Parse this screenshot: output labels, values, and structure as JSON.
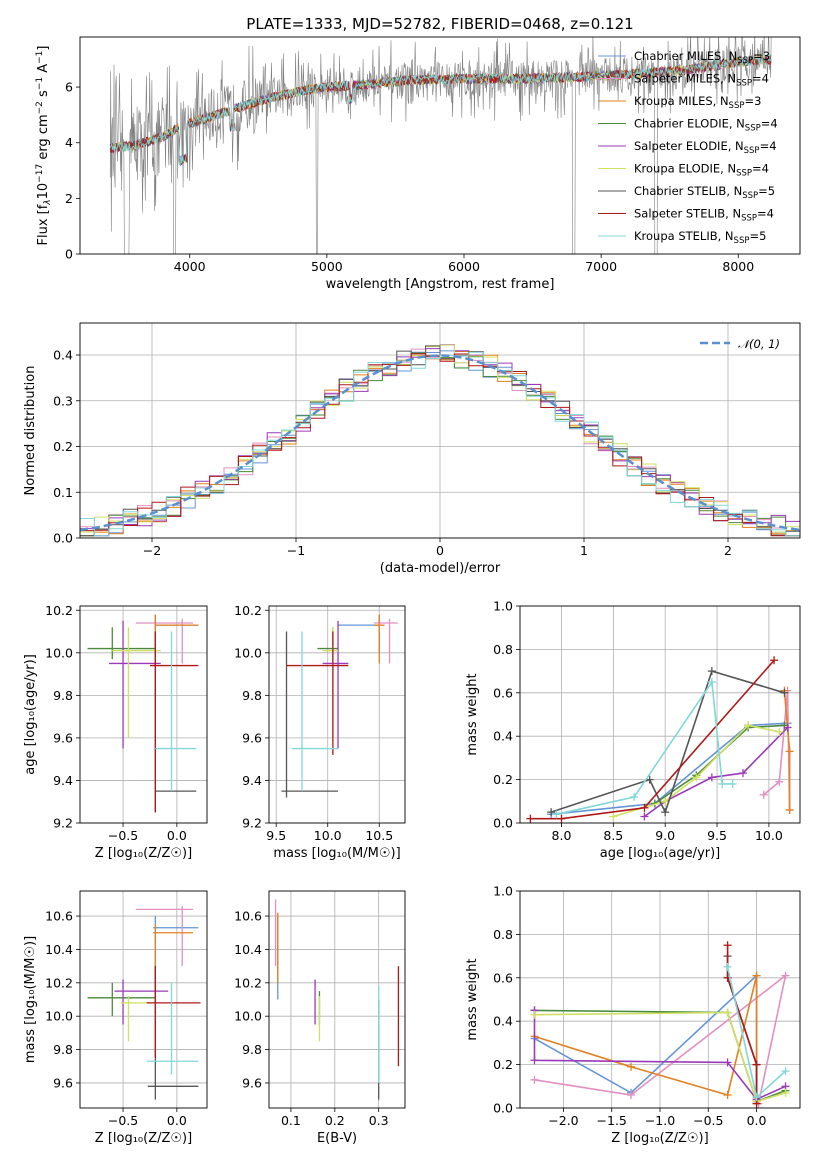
{
  "colors": {
    "chabrier_miles": "#6495d8",
    "salpeter_miles": "#e38fc0",
    "kroupa_miles": "#e3801f",
    "chabrier_elodie": "#4a8a3a",
    "salpeter_elodie": "#9a3ab8",
    "kroupa_elodie": "#d0e060",
    "chabrier_stelib": "#555555",
    "salpeter_stelib": "#b01818",
    "kroupa_stelib": "#80d8d8",
    "data_grey": "#808080",
    "normal_dash": "#5a8fd0"
  },
  "chart_data": [
    {
      "id": "spectrum",
      "type": "line",
      "title": "PLATE=1333, MJD=52782, FIBERID=0468, z=0.121",
      "xlabel": "wavelength [Angstrom, rest frame]",
      "ylabel_parts": [
        "Flux [f",
        "λ",
        "10",
        "−17",
        " erg cm",
        "−2",
        " s",
        "−1",
        " A",
        "−1",
        "]"
      ],
      "xlim": [
        3200,
        8450
      ],
      "ylim": [
        0,
        7.8
      ],
      "xticks": [
        "4000",
        "5000",
        "6000",
        "7000",
        "8000"
      ],
      "yticks": [
        "0",
        "2",
        "4",
        "6"
      ],
      "legend_position": "upper right",
      "legend": [
        {
          "name": "Chabrier MILES, N",
          "sub": "SSP",
          "suffix": "=3",
          "color_key": "chabrier_miles"
        },
        {
          "name": "Salpeter MILES, N",
          "sub": "SSP",
          "suffix": "=4",
          "color_key": "salpeter_miles"
        },
        {
          "name": "Kroupa MILES, N",
          "sub": "SSP",
          "suffix": "=3",
          "color_key": "kroupa_miles"
        },
        {
          "name": "Chabrier ELODIE, N",
          "sub": "SSP",
          "suffix": "=4",
          "color_key": "chabrier_elodie"
        },
        {
          "name": "Salpeter ELODIE, N",
          "sub": "SSP",
          "suffix": "=4",
          "color_key": "salpeter_elodie"
        },
        {
          "name": "Kroupa ELODIE, N",
          "sub": "SSP",
          "suffix": "=4",
          "color_key": "kroupa_elodie"
        },
        {
          "name": "Chabrier STELIB, N",
          "sub": "SSP",
          "suffix": "=5",
          "color_key": "chabrier_stelib"
        },
        {
          "name": "Salpeter STELIB, N",
          "sub": "SSP",
          "suffix": "=4",
          "color_key": "salpeter_stelib"
        },
        {
          "name": "Kroupa STELIB, N",
          "sub": "SSP",
          "suffix": "=5",
          "color_key": "kroupa_stelib"
        }
      ],
      "continuum": {
        "x": [
          3400,
          3600,
          3800,
          3900,
          4000,
          4200,
          4500,
          4800,
          5000,
          5300,
          5600,
          6000,
          6400,
          6800,
          7200,
          7600,
          8000,
          8200
        ],
        "y": [
          3.8,
          3.9,
          4.2,
          4.5,
          4.7,
          5.0,
          5.5,
          5.85,
          6.0,
          6.1,
          6.25,
          6.3,
          6.3,
          6.35,
          6.45,
          6.6,
          6.9,
          7.0
        ]
      }
    },
    {
      "id": "residuals",
      "type": "line",
      "xlabel": "(data-model)/error",
      "ylabel": "Normed distribution",
      "xlim": [
        -2.5,
        2.5
      ],
      "ylim": [
        0,
        0.47
      ],
      "xticks": [
        -2,
        -1,
        0,
        1,
        2
      ],
      "xtick_labels": [
        "−2",
        "−1",
        "0",
        "1",
        "2"
      ],
      "yticks": [
        0.0,
        0.1,
        0.2,
        0.3,
        0.4
      ],
      "ytick_labels": [
        "0.0",
        "0.1",
        "0.2",
        "0.3",
        "0.4"
      ],
      "grid": true,
      "legend_position": "upper right",
      "legend": "𝒩(0, 1)"
    },
    {
      "id": "age-vs-Z",
      "type": "scatter",
      "xlabel": "Z [log₁₀(Z/Z☉)]",
      "ylabel": "age  [log₁₀(age/yr)]",
      "xlim": [
        -0.9,
        0.28
      ],
      "ylim": [
        9.2,
        10.22
      ],
      "xticks": [
        -0.5,
        0.0
      ],
      "xtick_labels": [
        "−0.5",
        "0.0"
      ],
      "yticks": [
        9.2,
        9.4,
        9.6,
        9.8,
        10.0,
        10.2
      ],
      "ytick_labels": [
        "9.2",
        "9.4",
        "9.6",
        "9.8",
        "10.0",
        "10.2"
      ],
      "grid": true,
      "points": [
        {
          "c": "chabrier_miles",
          "x": -0.2,
          "y": 10.13,
          "x0": -0.2,
          "x1": 0.2,
          "y0": 10.0,
          "y1": 10.18
        },
        {
          "c": "salpeter_miles",
          "x": 0.05,
          "y": 10.14,
          "x0": -0.38,
          "x1": 0.15,
          "y0": 9.95,
          "y1": 10.16
        },
        {
          "c": "kroupa_miles",
          "x": -0.2,
          "y": 10.13,
          "x0": -0.2,
          "x1": 0.2,
          "y0": 9.95,
          "y1": 10.18
        },
        {
          "c": "chabrier_elodie",
          "x": -0.6,
          "y": 10.02,
          "x0": -0.83,
          "x1": -0.2,
          "y0": 9.97,
          "y1": 10.12
        },
        {
          "c": "salpeter_elodie",
          "x": -0.5,
          "y": 9.95,
          "x0": -0.63,
          "x1": -0.15,
          "y0": 9.55,
          "y1": 10.15
        },
        {
          "c": "kroupa_elodie",
          "x": -0.45,
          "y": 10.01,
          "x0": -0.6,
          "x1": -0.15,
          "y0": 9.6,
          "y1": 10.12
        },
        {
          "c": "chabrier_stelib",
          "x": -0.2,
          "y": 9.35,
          "x0": -0.2,
          "x1": 0.18,
          "y0": 9.25,
          "y1": 10.1
        },
        {
          "c": "salpeter_stelib",
          "x": -0.2,
          "y": 9.94,
          "x0": -0.25,
          "x1": 0.2,
          "y0": 9.25,
          "y1": 10.1
        },
        {
          "c": "kroupa_stelib",
          "x": -0.05,
          "y": 9.55,
          "x0": -0.2,
          "x1": 0.18,
          "y0": 9.35,
          "y1": 10.1
        }
      ]
    },
    {
      "id": "age-vs-mass",
      "type": "scatter",
      "xlabel": "mass [log₁₀(M/M☉)]",
      "xlim": [
        9.43,
        10.75
      ],
      "ylim": [
        9.2,
        10.22
      ],
      "xticks": [
        9.5,
        10.0,
        10.5
      ],
      "xtick_labels": [
        "9.5",
        "10.0",
        "10.5"
      ],
      "yticks": [
        9.2,
        9.4,
        9.6,
        9.8,
        10.0,
        10.2
      ],
      "ytick_labels": [
        "9.2",
        "9.4",
        "9.6",
        "9.8",
        "10.0",
        "10.2"
      ],
      "grid": true,
      "points": [
        {
          "c": "chabrier_miles",
          "x": 10.5,
          "y": 10.13,
          "x0": 10.1,
          "x1": 10.55,
          "y0": 10.0,
          "y1": 10.18
        },
        {
          "c": "salpeter_miles",
          "x": 10.6,
          "y": 10.14,
          "x0": 10.45,
          "x1": 10.68,
          "y0": 9.95,
          "y1": 10.16
        },
        {
          "c": "kroupa_miles",
          "x": 10.5,
          "y": 10.13,
          "x0": 10.45,
          "x1": 10.55,
          "y0": 9.95,
          "y1": 10.18
        },
        {
          "c": "chabrier_elodie",
          "x": 10.05,
          "y": 10.02,
          "x0": 9.9,
          "x1": 10.1,
          "y0": 9.97,
          "y1": 10.12
        },
        {
          "c": "salpeter_elodie",
          "x": 10.1,
          "y": 9.95,
          "x0": 9.95,
          "x1": 10.2,
          "y0": 9.55,
          "y1": 10.15
        },
        {
          "c": "kroupa_elodie",
          "x": 10.05,
          "y": 10.01,
          "x0": 9.95,
          "x1": 10.1,
          "y0": 9.6,
          "y1": 10.12
        },
        {
          "c": "chabrier_stelib",
          "x": 9.6,
          "y": 9.35,
          "x0": 9.55,
          "x1": 10.1,
          "y0": 9.32,
          "y1": 10.1
        },
        {
          "c": "salpeter_stelib",
          "x": 10.05,
          "y": 9.94,
          "x0": 9.6,
          "x1": 10.2,
          "y0": 9.52,
          "y1": 10.1
        },
        {
          "c": "kroupa_stelib",
          "x": 9.75,
          "y": 9.55,
          "x0": 9.65,
          "x1": 10.1,
          "y0": 9.35,
          "y1": 10.1
        }
      ]
    },
    {
      "id": "massweight-vs-age",
      "type": "line",
      "xlabel": "age  [log₁₀(age/yr)]",
      "ylabel": "mass weight",
      "xlim": [
        7.6,
        10.3
      ],
      "ylim": [
        0,
        1.0
      ],
      "xticks": [
        8.0,
        8.5,
        9.0,
        9.5,
        10.0
      ],
      "xtick_labels": [
        "8.0",
        "8.5",
        "9.0",
        "9.5",
        "10.0"
      ],
      "yticks": [
        0.0,
        0.2,
        0.4,
        0.6,
        0.8,
        1.0
      ],
      "ytick_labels": [
        "0.0",
        "0.2",
        "0.4",
        "0.6",
        "0.8",
        "1.0"
      ],
      "grid": true,
      "series": [
        {
          "c": "chabrier_miles",
          "x": [
            7.9,
            8.9,
            9.8,
            10.18
          ],
          "y": [
            0.04,
            0.09,
            0.45,
            0.46
          ]
        },
        {
          "c": "salpeter_miles",
          "x": [
            9.95,
            10.1,
            10.18,
            10.2
          ],
          "y": [
            0.13,
            0.19,
            0.61,
            0.06
          ]
        },
        {
          "c": "kroupa_miles",
          "x": [
            10.15,
            10.2,
            10.2
          ],
          "y": [
            0.61,
            0.33,
            0.06
          ]
        },
        {
          "c": "chabrier_elodie",
          "x": [
            8.9,
            9.3,
            9.8,
            10.15
          ],
          "y": [
            0.09,
            0.22,
            0.44,
            0.45
          ]
        },
        {
          "c": "salpeter_elodie",
          "x": [
            8.8,
            9.0,
            9.45,
            9.75,
            10.18
          ],
          "y": [
            0.03,
            0.1,
            0.21,
            0.23,
            0.44
          ]
        },
        {
          "c": "kroupa_elodie",
          "x": [
            8.5,
            9.0,
            9.3,
            9.8,
            10.1
          ],
          "y": [
            0.03,
            0.1,
            0.21,
            0.45,
            0.42
          ]
        },
        {
          "c": "chabrier_stelib",
          "x": [
            7.9,
            8.85,
            9.0,
            9.45,
            10.15
          ],
          "y": [
            0.05,
            0.2,
            0.05,
            0.7,
            0.6
          ]
        },
        {
          "c": "salpeter_stelib",
          "x": [
            7.7,
            8.0,
            8.8,
            10.05
          ],
          "y": [
            0.02,
            0.02,
            0.07,
            0.75
          ]
        },
        {
          "c": "kroupa_stelib",
          "x": [
            7.95,
            8.7,
            9.45,
            9.55,
            9.65
          ],
          "y": [
            0.04,
            0.12,
            0.65,
            0.18,
            0.18
          ]
        }
      ]
    },
    {
      "id": "mass-vs-Z",
      "type": "scatter",
      "xlabel": "Z [log₁₀(Z/Z☉)]",
      "ylabel": "mass [log₁₀(M/M☉)]",
      "xlim": [
        -0.9,
        0.28
      ],
      "ylim": [
        9.45,
        10.75
      ],
      "xticks": [
        -0.5,
        0.0
      ],
      "xtick_labels": [
        "−0.5",
        "0.0"
      ],
      "yticks": [
        9.6,
        9.8,
        10.0,
        10.2,
        10.4,
        10.6
      ],
      "ytick_labels": [
        "9.6",
        "9.8",
        "10.0",
        "10.2",
        "10.4",
        "10.6"
      ],
      "grid": true,
      "points": [
        {
          "c": "chabrier_miles",
          "x": -0.2,
          "y": 10.53,
          "x0": -0.22,
          "x1": 0.2,
          "y0": 10.1,
          "y1": 10.6
        },
        {
          "c": "salpeter_miles",
          "x": 0.05,
          "y": 10.64,
          "x0": -0.38,
          "x1": 0.15,
          "y0": 10.3,
          "y1": 10.66
        },
        {
          "c": "kroupa_miles",
          "x": -0.2,
          "y": 10.5,
          "x0": -0.22,
          "x1": 0.15,
          "y0": 10.2,
          "y1": 10.55
        },
        {
          "c": "chabrier_elodie",
          "x": -0.6,
          "y": 10.11,
          "x0": -0.83,
          "x1": -0.2,
          "y0": 10.0,
          "y1": 10.2
        },
        {
          "c": "salpeter_elodie",
          "x": -0.5,
          "y": 10.15,
          "x0": -0.58,
          "x1": -0.08,
          "y0": 9.95,
          "y1": 10.22
        },
        {
          "c": "kroupa_elodie",
          "x": -0.45,
          "y": 10.08,
          "x0": -0.52,
          "x1": -0.2,
          "y0": 9.85,
          "y1": 10.12
        },
        {
          "c": "chabrier_stelib",
          "x": -0.2,
          "y": 9.58,
          "x0": -0.27,
          "x1": 0.2,
          "y0": 9.5,
          "y1": 10.3
        },
        {
          "c": "salpeter_stelib",
          "x": -0.2,
          "y": 10.08,
          "x0": -0.28,
          "x1": 0.22,
          "y0": 9.75,
          "y1": 10.3
        },
        {
          "c": "kroupa_stelib",
          "x": -0.05,
          "y": 9.73,
          "x0": -0.28,
          "x1": 0.2,
          "y0": 9.65,
          "y1": 10.2
        }
      ]
    },
    {
      "id": "mass-vs-EBV",
      "type": "scatter",
      "xlabel": "E(B-V)",
      "xlim": [
        0.05,
        0.36
      ],
      "ylim": [
        9.45,
        10.75
      ],
      "xticks": [
        0.1,
        0.2,
        0.3
      ],
      "xtick_labels": [
        "0.1",
        "0.2",
        "0.3"
      ],
      "yticks": [
        9.6,
        9.8,
        10.0,
        10.2,
        10.4,
        10.6
      ],
      "ytick_labels": [
        "9.6",
        "9.8",
        "10.0",
        "10.2",
        "10.4",
        "10.6"
      ],
      "grid": true,
      "points": [
        {
          "c": "chabrier_miles",
          "x": 0.07,
          "y": 10.4,
          "x0": 0.07,
          "x1": 0.07,
          "y0": 10.1,
          "y1": 10.6
        },
        {
          "c": "salpeter_miles",
          "x": 0.065,
          "y": 10.5,
          "x0": 0.065,
          "x1": 0.065,
          "y0": 10.3,
          "y1": 10.7
        },
        {
          "c": "kroupa_miles",
          "x": 0.07,
          "y": 10.4,
          "x0": 0.07,
          "x1": 0.07,
          "y0": 10.2,
          "y1": 10.62
        },
        {
          "c": "chabrier_elodie",
          "x": 0.165,
          "y": 10.1,
          "x0": 0.165,
          "x1": 0.165,
          "y0": 9.95,
          "y1": 10.15
        },
        {
          "c": "salpeter_elodie",
          "x": 0.155,
          "y": 10.1,
          "x0": 0.155,
          "x1": 0.155,
          "y0": 9.95,
          "y1": 10.22
        },
        {
          "c": "kroupa_elodie",
          "x": 0.165,
          "y": 10.0,
          "x0": 0.165,
          "x1": 0.165,
          "y0": 9.85,
          "y1": 10.12
        },
        {
          "c": "chabrier_stelib",
          "x": 0.3,
          "y": 9.7,
          "x0": 0.3,
          "x1": 0.3,
          "y0": 9.5,
          "y1": 10.1
        },
        {
          "c": "salpeter_stelib",
          "x": 0.345,
          "y": 10.0,
          "x0": 0.345,
          "x1": 0.345,
          "y0": 9.7,
          "y1": 10.3
        },
        {
          "c": "kroupa_stelib",
          "x": 0.3,
          "y": 9.8,
          "x0": 0.3,
          "x1": 0.3,
          "y0": 9.6,
          "y1": 10.18
        }
      ]
    },
    {
      "id": "massweight-vs-Z",
      "type": "line",
      "xlabel": "Z [log₁₀(Z/Z☉)]",
      "ylabel": "mass weight",
      "xlim": [
        -2.45,
        0.45
      ],
      "ylim": [
        0,
        1.0
      ],
      "xticks": [
        -2.0,
        -1.5,
        -1.0,
        -0.5,
        0.0
      ],
      "xtick_labels": [
        "−2.0",
        "−1.5",
        "−1.0",
        "−0.5",
        "0.0"
      ],
      "yticks": [
        0.0,
        0.2,
        0.4,
        0.6,
        0.8,
        1.0
      ],
      "ytick_labels": [
        "0.0",
        "0.2",
        "0.4",
        "0.6",
        "0.8",
        "1.0"
      ],
      "grid": true,
      "series": [
        {
          "c": "chabrier_miles",
          "x": [
            -2.3,
            -1.3,
            0.0,
            0.0
          ],
          "y": [
            0.32,
            0.07,
            0.61,
            0.03
          ]
        },
        {
          "c": "salpeter_miles",
          "x": [
            -2.3,
            -1.3,
            0.3,
            0.02
          ],
          "y": [
            0.13,
            0.06,
            0.61,
            0.02
          ]
        },
        {
          "c": "kroupa_miles",
          "x": [
            -2.3,
            -1.3,
            -0.3,
            0.0,
            0.0
          ],
          "y": [
            0.33,
            0.19,
            0.06,
            0.61,
            0.03
          ]
        },
        {
          "c": "chabrier_elodie",
          "x": [
            -2.3,
            -0.3,
            0.0,
            0.3
          ],
          "y": [
            0.45,
            0.44,
            0.03,
            0.08
          ]
        },
        {
          "c": "salpeter_elodie",
          "x": [
            -2.3,
            -2.3,
            -0.3,
            0.0,
            0.3
          ],
          "y": [
            0.45,
            0.22,
            0.21,
            0.04,
            0.1
          ]
        },
        {
          "c": "kroupa_elodie",
          "x": [
            -2.3,
            -0.3,
            0.0,
            0.3
          ],
          "y": [
            0.43,
            0.44,
            0.03,
            0.07
          ]
        },
        {
          "c": "chabrier_stelib",
          "x": [
            -0.3,
            -0.3,
            0.0,
            0.0
          ],
          "y": [
            0.7,
            0.6,
            0.2,
            0.05
          ]
        },
        {
          "c": "salpeter_stelib",
          "x": [
            -0.3,
            -0.3,
            0.0,
            0.0
          ],
          "y": [
            0.75,
            0.6,
            0.2,
            0.02
          ]
        },
        {
          "c": "kroupa_stelib",
          "x": [
            -0.3,
            0.0,
            0.3
          ],
          "y": [
            0.65,
            0.05,
            0.17
          ]
        }
      ]
    }
  ]
}
